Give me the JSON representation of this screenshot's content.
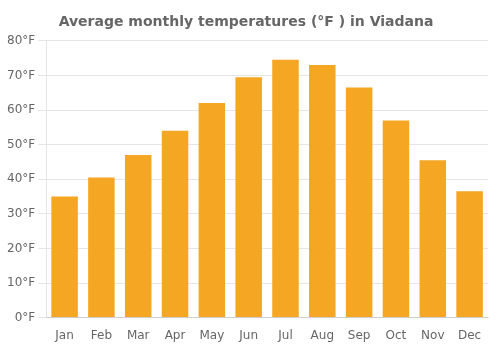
{
  "chart_data": {
    "type": "bar",
    "title": "Average monthly temperatures (°F ) in Viadana",
    "categories": [
      "Jan",
      "Feb",
      "Mar",
      "Apr",
      "May",
      "Jun",
      "Jul",
      "Aug",
      "Sep",
      "Oct",
      "Nov",
      "Dec"
    ],
    "values": [
      35,
      40.5,
      47,
      54,
      62,
      69.5,
      74.5,
      73,
      66.5,
      57,
      45.5,
      36.5
    ],
    "color": "#F5A623",
    "ylim": [
      0,
      80
    ],
    "yticks": [
      {
        "value": 0,
        "label": "0°F"
      },
      {
        "value": 10,
        "label": "10°F"
      },
      {
        "value": 20,
        "label": "20°F"
      },
      {
        "value": 30,
        "label": "30°F"
      },
      {
        "value": 40,
        "label": "40°F"
      },
      {
        "value": 50,
        "label": "50°F"
      },
      {
        "value": 60,
        "label": "60°F"
      },
      {
        "value": 70,
        "label": "70°F"
      },
      {
        "value": 80,
        "label": "80°F"
      }
    ],
    "grid": true
  }
}
